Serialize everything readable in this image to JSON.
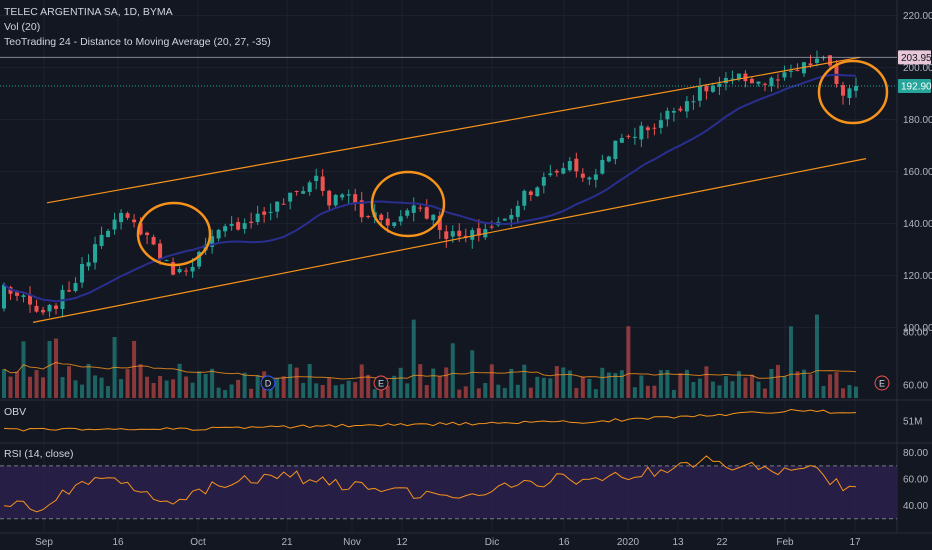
{
  "legend": {
    "symbol": "TELEC ARGENTINA SA, 1D, BYMA",
    "volume": "Vol (20)",
    "indicator": "TeoTrading 24 - Distance to Moving Average (20, 27, -35)",
    "obv": "OBV",
    "rsi": "RSI (14, close)"
  },
  "colors": {
    "background": "#131722",
    "up": "#26a69a",
    "down": "#ef5350",
    "ma": "#2a2e8f",
    "channel": "#f7931a",
    "circle": "#f7931a",
    "obv": "#f7931a",
    "rsi": "#f7931a",
    "rsi_band": "#2a1f4a",
    "high_line": "#b2b5be",
    "last_line": "#26a69a"
  },
  "price_tags": {
    "high": "203.950",
    "last": "192.900"
  },
  "event_markers": [
    "D",
    "E",
    "E"
  ],
  "chart_data": [
    {
      "type": "candlestick",
      "name": "price",
      "x_labels": [
        "Sep",
        "16",
        "Oct",
        "21",
        "Nov",
        "12",
        "Dic",
        "16",
        "2020",
        "13",
        "22",
        "Feb",
        "17"
      ],
      "y_ticks": [
        "220.00",
        "200.00",
        "180.00",
        "160.00",
        "140.00",
        "120.00",
        "100.00"
      ],
      "ylim": [
        96,
        226
      ],
      "start": 108,
      "end": 192,
      "low": 104,
      "high": 203.95,
      "last": 192.9,
      "channel_upper": [
        [
          47,
          148
        ],
        [
          860,
          203.95
        ]
      ],
      "channel_lower": [
        [
          33,
          102
        ],
        [
          866,
          165
        ]
      ],
      "ma_length": 20,
      "circled_regions": [
        {
          "center": [
            174,
            234
          ],
          "r": [
            36,
            31
          ]
        },
        {
          "center": [
            408,
            204
          ],
          "r": [
            36,
            32
          ]
        },
        {
          "center": [
            853,
            92
          ],
          "r": [
            34,
            31
          ]
        }
      ],
      "keypoints": [
        [
          0,
          116
        ],
        [
          3,
          110
        ],
        [
          6,
          104
        ],
        [
          9,
          112
        ],
        [
          12,
          122
        ],
        [
          15,
          138
        ],
        [
          18,
          142
        ],
        [
          21,
          138
        ],
        [
          23,
          132
        ],
        [
          25,
          124
        ],
        [
          27,
          121
        ],
        [
          30,
          128
        ],
        [
          33,
          136
        ],
        [
          36,
          140
        ],
        [
          40,
          144
        ],
        [
          44,
          150
        ],
        [
          48,
          158
        ],
        [
          50,
          148
        ],
        [
          53,
          152
        ],
        [
          55,
          142
        ],
        [
          57,
          144
        ],
        [
          60,
          140
        ],
        [
          63,
          148
        ],
        [
          66,
          142
        ],
        [
          68,
          136
        ],
        [
          71,
          134
        ],
        [
          74,
          138
        ],
        [
          77,
          141
        ],
        [
          80,
          152
        ],
        [
          84,
          158
        ],
        [
          87,
          164
        ],
        [
          90,
          156
        ],
        [
          93,
          168
        ],
        [
          96,
          174
        ],
        [
          100,
          178
        ],
        [
          104,
          186
        ],
        [
          108,
          192
        ],
        [
          111,
          194
        ],
        [
          114,
          196
        ],
        [
          117,
          194
        ],
        [
          120,
          196
        ],
        [
          123,
          200
        ],
        [
          125,
          203
        ],
        [
          127,
          201
        ],
        [
          129,
          188
        ],
        [
          131,
          192
        ]
      ]
    },
    {
      "type": "bar",
      "name": "Vol",
      "y_ticks": [
        "80.00",
        "60.00"
      ],
      "ylim": [
        55,
        92
      ]
    },
    {
      "type": "line",
      "name": "OBV",
      "y_ticks": [
        "51M"
      ],
      "ylim": [
        48,
        54
      ],
      "keypoints": [
        [
          0,
          49.6
        ],
        [
          30,
          49.8
        ],
        [
          60,
          50.4
        ],
        [
          90,
          50.9
        ],
        [
          120,
          52.6
        ],
        [
          131,
          52.4
        ]
      ]
    },
    {
      "type": "line",
      "name": "RSI",
      "y_ticks": [
        "80.00",
        "60.00",
        "40.00"
      ],
      "ylim": [
        20,
        85
      ],
      "bands": [
        70,
        30
      ],
      "keypoints": [
        [
          0,
          42
        ],
        [
          5,
          38
        ],
        [
          10,
          52
        ],
        [
          14,
          58
        ],
        [
          18,
          56
        ],
        [
          22,
          50
        ],
        [
          26,
          44
        ],
        [
          30,
          52
        ],
        [
          35,
          58
        ],
        [
          40,
          60
        ],
        [
          45,
          62
        ],
        [
          50,
          56
        ],
        [
          55,
          54
        ],
        [
          60,
          50
        ],
        [
          65,
          48
        ],
        [
          70,
          46
        ],
        [
          75,
          52
        ],
        [
          80,
          56
        ],
        [
          85,
          60
        ],
        [
          90,
          58
        ],
        [
          95,
          62
        ],
        [
          100,
          66
        ],
        [
          104,
          70
        ],
        [
          108,
          74
        ],
        [
          112,
          70
        ],
        [
          116,
          68
        ],
        [
          120,
          66
        ],
        [
          124,
          70
        ],
        [
          128,
          56
        ],
        [
          130,
          52
        ],
        [
          131,
          56
        ]
      ]
    }
  ]
}
